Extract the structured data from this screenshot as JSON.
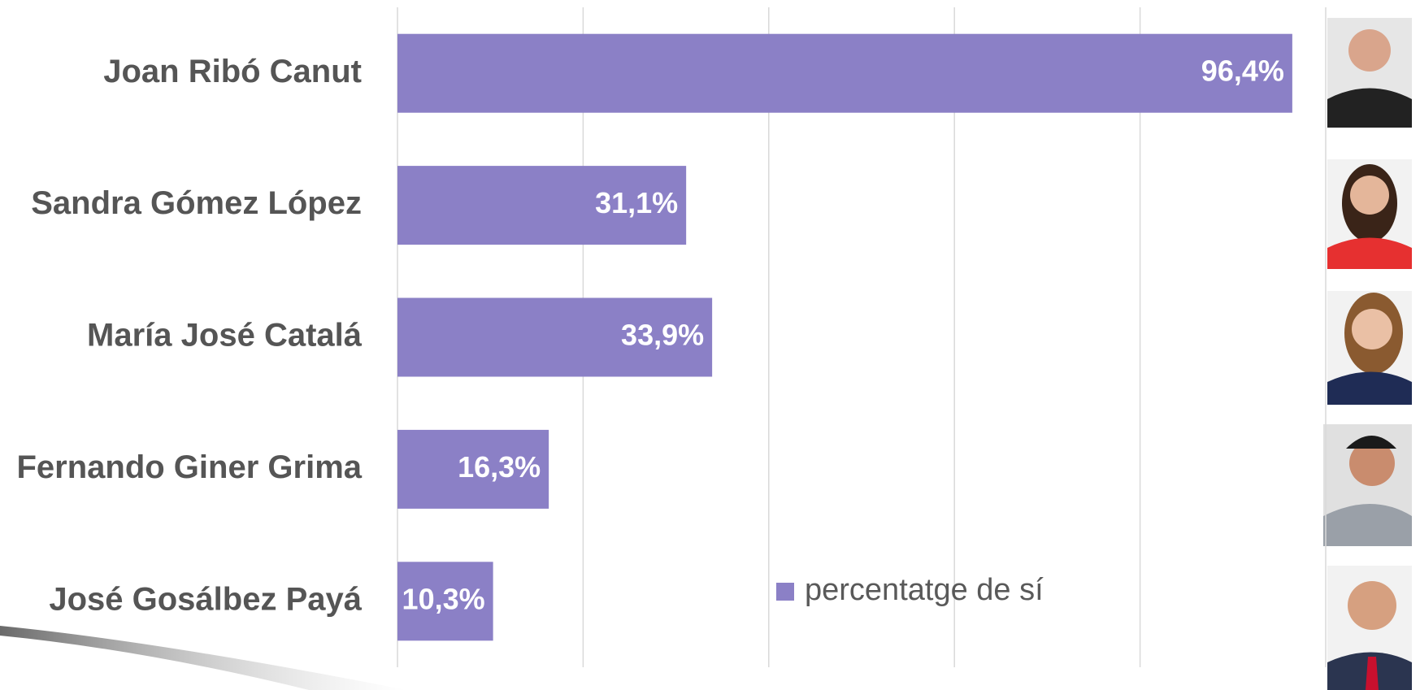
{
  "chart_data": {
    "type": "bar",
    "orientation": "horizontal",
    "categories": [
      "Joan Ribó Canut",
      "Sandra Gómez López",
      "María José Catalá",
      "Fernando Giner Grima",
      "José Gosálbez Payá"
    ],
    "series": [
      {
        "name": "percentatge de sí",
        "color": "#8b80c6",
        "values": [
          96.4,
          31.1,
          33.9,
          16.3,
          10.3
        ],
        "value_labels": [
          "96,4%",
          "31,1%",
          "33,9%",
          "16,3%",
          "10,3%"
        ]
      }
    ],
    "xlim": [
      0,
      100
    ],
    "xticks": [
      0,
      20,
      40,
      60,
      80,
      100
    ],
    "grid": true
  }
}
